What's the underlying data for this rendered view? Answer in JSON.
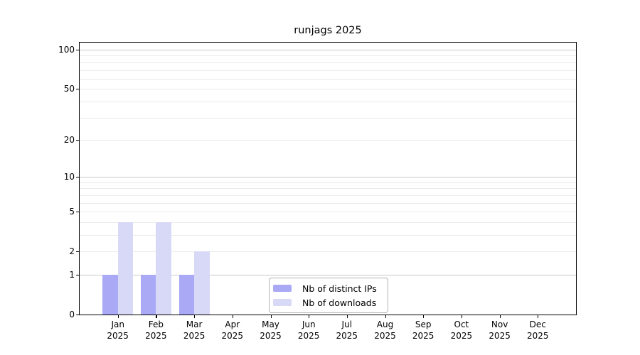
{
  "chart_data": {
    "type": "bar",
    "title": "runjags 2025",
    "categories": [
      "Jan",
      "Feb",
      "Mar",
      "Apr",
      "May",
      "Jun",
      "Jul",
      "Aug",
      "Sep",
      "Oct",
      "Nov",
      "Dec"
    ],
    "year": "2025",
    "series": [
      {
        "name": "Nb of distinct IPs",
        "color": "#a9a9f6",
        "values": [
          1,
          1,
          1,
          0,
          0,
          0,
          0,
          0,
          0,
          0,
          0,
          0
        ]
      },
      {
        "name": "Nb of downloads",
        "color": "#d8d8f7",
        "values": [
          4,
          4,
          2,
          0,
          0,
          0,
          0,
          0,
          0,
          0,
          0,
          0
        ]
      }
    ],
    "yscale": "log1p",
    "ylim": [
      0,
      113
    ],
    "yticks": [
      0,
      1,
      2,
      5,
      10,
      20,
      50,
      100
    ],
    "grid": {
      "minor": [
        2,
        3,
        4,
        5,
        6,
        7,
        8,
        9,
        20,
        30,
        40,
        50,
        60,
        70,
        80,
        90
      ],
      "major": [
        1,
        10,
        100
      ]
    },
    "legend_position": "lower-center-inside"
  },
  "colors": {
    "grid_minor": "#ebebeb",
    "grid_major": "#c8c8c8",
    "frame": "#000000",
    "legend_border": "#b3b3b3",
    "background": "#ffffff",
    "text": "#000000"
  }
}
